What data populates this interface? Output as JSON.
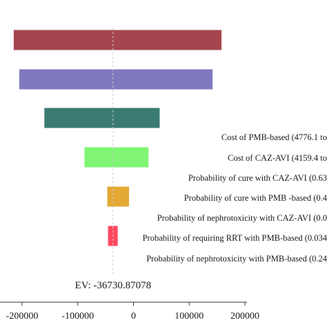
{
  "chart_data": {
    "type": "bar",
    "orientation": "horizontal",
    "title": "",
    "xlabel": "",
    "ylabel": "",
    "xlim": [
      -220000,
      230000
    ],
    "xticks": [
      -200000,
      -100000,
      0,
      100000,
      200000
    ],
    "xtick_labels": [
      "-200000",
      "-100000",
      "0",
      "100000",
      "200000"
    ],
    "baseline": -36730.87078,
    "ev_label": "EV: -36730.87078",
    "legend": "none",
    "grid": false,
    "categories": [
      "",
      "",
      "",
      "Cost of PMB-based (4776.1 to",
      "Cost of CAZ-AVI (4159.4 to",
      "Probability of cure with CAZ-AVI (0.63",
      "Probability of cure with PMB -based (0.4",
      "Probability of nephrotoxicity with CAZ-AVI (0.0",
      "Probability of requiring RRT with PMB-based (0.034",
      "Probability of nephrotoxicity with PMB-based (0.24"
    ],
    "series": [
      {
        "low": [
          -215000,
          -205000,
          -160000,
          -88000,
          -47000,
          -37000,
          -37000,
          -37000,
          -37000,
          -37000
        ],
        "high": [
          158000,
          142000,
          47000,
          27000,
          -8000,
          -37000,
          -37000,
          -37000,
          -37000,
          -37000
        ],
        "colors": [
          "#a5464f",
          "#8079bf",
          "#3a7b72",
          "#7ff573",
          "#e4a935",
          "#ff4960",
          "#ff4960",
          "#ff4960",
          "#ff4960",
          "#ff4960"
        ]
      }
    ]
  }
}
